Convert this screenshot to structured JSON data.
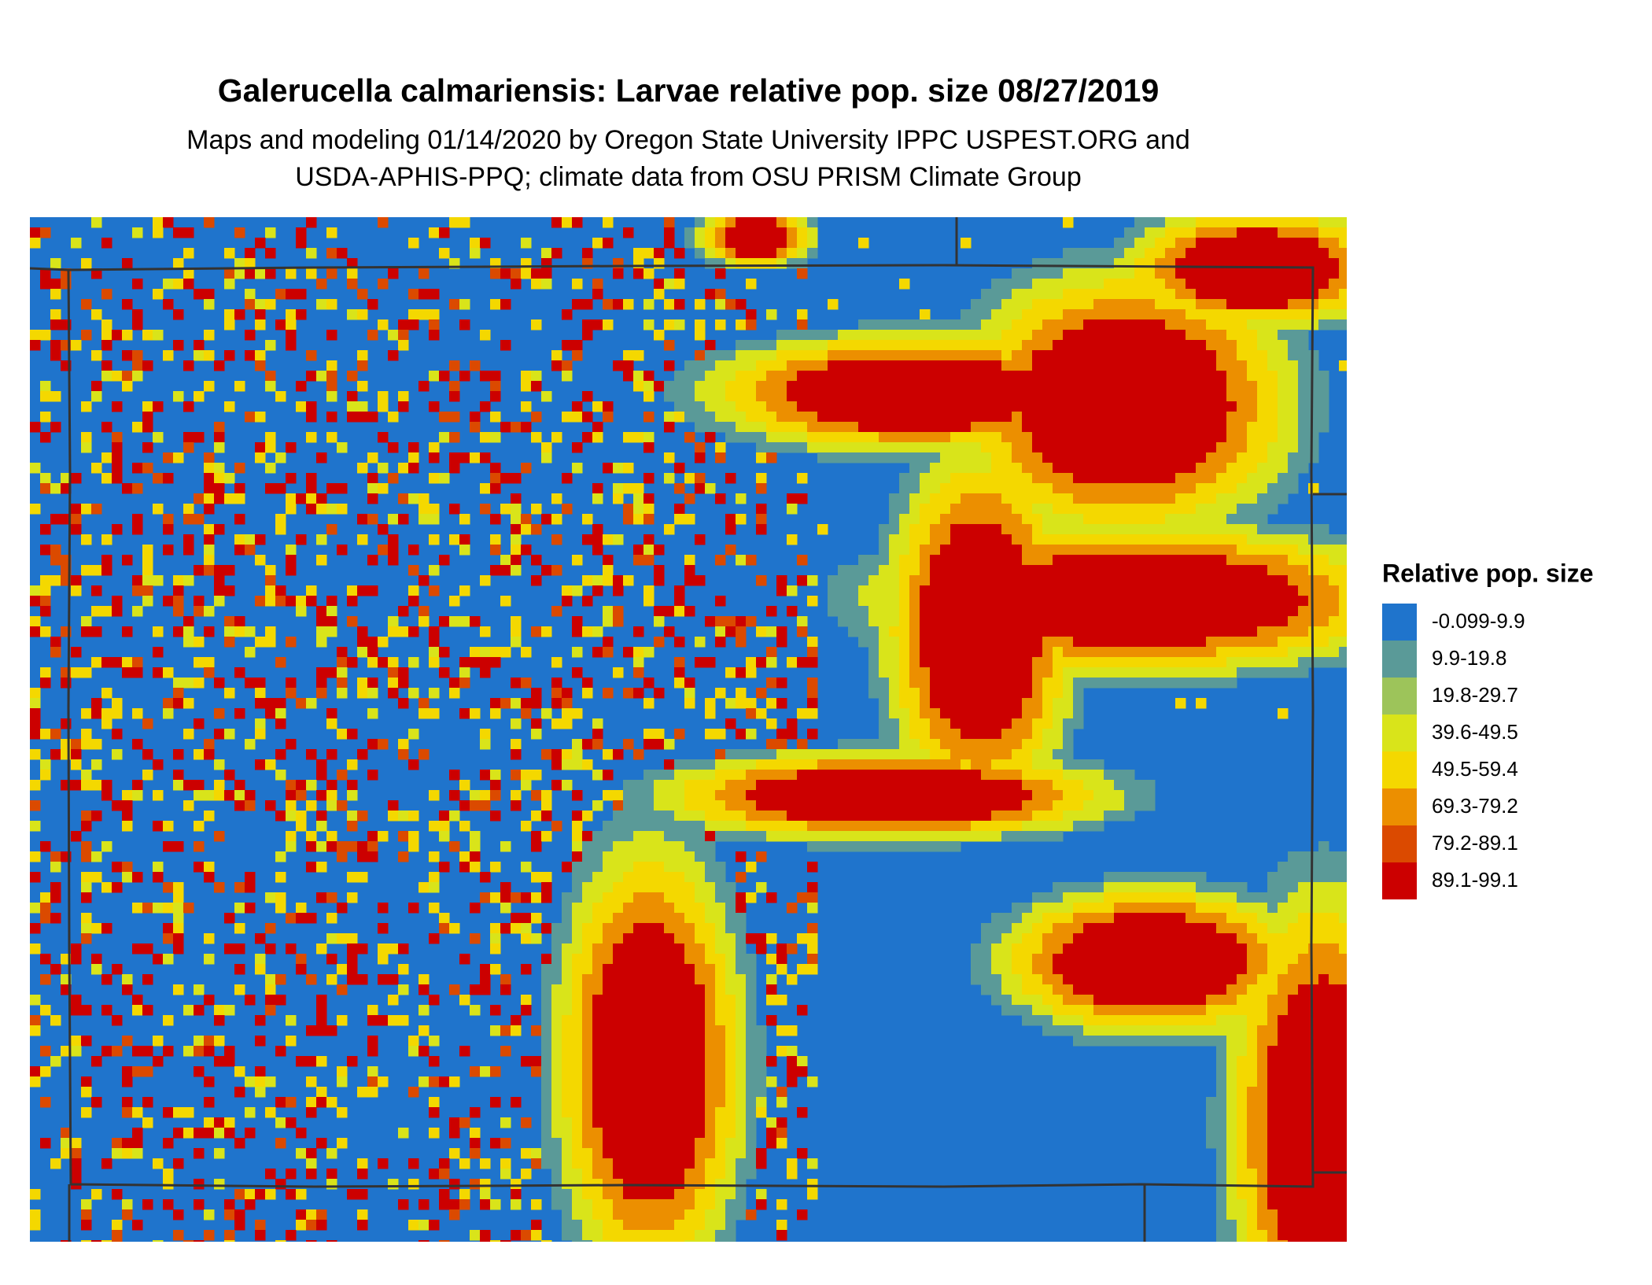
{
  "chart_data": {
    "type": "raster-map",
    "title": "Galerucella calmariensis: Larvae relative pop. size 08/27/2019",
    "subtitle": [
      "Maps and modeling 01/14/2020 by Oregon State University IPPC USPEST.ORG and",
      "USDA-APHIS-PPQ; climate data from OSU PRISM Climate Group"
    ],
    "legend_title": "Relative pop. size",
    "legend": [
      {
        "label": "-0.099-9.9",
        "color": "#1f74cc"
      },
      {
        "label": "9.9-19.8",
        "color": "#5a9a98"
      },
      {
        "label": "19.8-29.7",
        "color": "#9dc45a"
      },
      {
        "label": "39.6-49.5",
        "color": "#d9e41a"
      },
      {
        "label": "49.5-59.4",
        "color": "#f4d800"
      },
      {
        "label": "69.3-79.2",
        "color": "#ec8f00"
      },
      {
        "label": "79.2-89.1",
        "color": "#db4a00"
      },
      {
        "label": "89.1-99.1",
        "color": "#cc0000"
      }
    ]
  }
}
